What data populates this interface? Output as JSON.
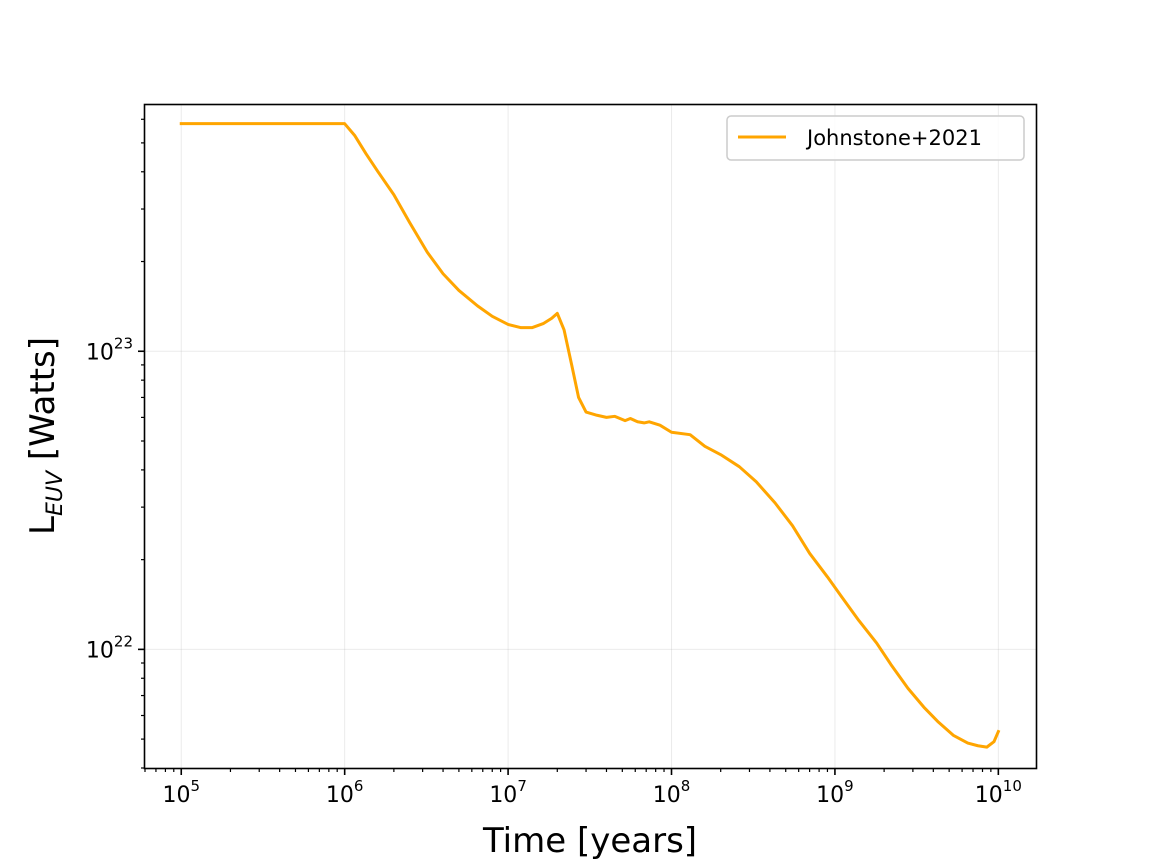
{
  "chart_data": {
    "type": "line",
    "title": "",
    "xlabel": "Time [years]",
    "ylabel_main": "L",
    "ylabel_sub": "EUV",
    "ylabel_unit": " [Watts]",
    "xscale": "log",
    "yscale": "log",
    "xlim": [
      60000,
      17000000000
    ],
    "ylim": [
      4e+21,
      6.7e+23
    ],
    "grid": true,
    "legend_position": "top-right",
    "x_ticks": [
      {
        "value": 100000,
        "base": "10",
        "exp": "5"
      },
      {
        "value": 1000000,
        "base": "10",
        "exp": "6"
      },
      {
        "value": 10000000,
        "base": "10",
        "exp": "7"
      },
      {
        "value": 100000000,
        "base": "10",
        "exp": "8"
      },
      {
        "value": 1000000000,
        "base": "10",
        "exp": "9"
      },
      {
        "value": 10000000000,
        "base": "10",
        "exp": "10"
      }
    ],
    "y_ticks": [
      {
        "value": 1e+22,
        "base": "10",
        "exp": "22"
      },
      {
        "value": 1e+23,
        "base": "10",
        "exp": "23"
      }
    ],
    "series": [
      {
        "name": "Johnstone+2021",
        "color": "#ffa500",
        "x": [
          100000.0,
          1000000.0,
          1150000.0,
          1350000.0,
          1600000.0,
          2000000.0,
          2500000.0,
          3200000.0,
          4000000.0,
          5000000.0,
          6500000.0,
          8000000.0,
          10000000.0,
          12000000.0,
          14000000.0,
          16500000.0,
          18500000.0,
          20000000.0,
          22000000.0,
          24500000.0,
          27000000.0,
          30000000.0,
          35000000.0,
          40000000.0,
          45000000.0,
          52000000.0,
          56000000.0,
          62000000.0,
          68000000.0,
          73000000.0,
          85000000.0,
          100000000.0,
          130000000.0,
          160000000.0,
          200000000.0,
          260000000.0,
          330000000.0,
          430000000.0,
          550000000.0,
          700000000.0,
          900000000.0,
          1100000000.0,
          1400000000.0,
          1800000000.0,
          2200000000.0,
          2800000000.0,
          3500000000.0,
          4300000000.0,
          5300000000.0,
          6500000000.0,
          7500000000.0,
          8500000000.0,
          9400000000.0,
          10000000000.0
        ],
        "y": [
          5.8e+23,
          5.8e+23,
          5.3e+23,
          4.6e+23,
          4e+23,
          3.35e+23,
          2.7e+23,
          2.15e+23,
          1.82e+23,
          1.6e+23,
          1.42e+23,
          1.31e+23,
          1.23e+23,
          1.2e+23,
          1.2e+23,
          1.24e+23,
          1.29e+23,
          1.34e+23,
          1.18e+23,
          9e+22,
          7e+22,
          6.25e+22,
          6.1e+22,
          6e+22,
          6.05e+22,
          5.85e+22,
          5.95e+22,
          5.8e+22,
          5.75e+22,
          5.8e+22,
          5.65e+22,
          5.35e+22,
          5.25e+22,
          4.8e+22,
          4.5e+22,
          4.1e+22,
          3.65e+22,
          3.1e+22,
          2.6e+22,
          2.1e+22,
          1.75e+22,
          1.5e+22,
          1.25e+22,
          1.05e+22,
          8.9e+21,
          7.4e+21,
          6.4e+21,
          5.7e+21,
          5.15e+21,
          4.85e+21,
          4.75e+21,
          4.7e+21,
          4.9e+21,
          5.3e+21
        ]
      }
    ]
  }
}
